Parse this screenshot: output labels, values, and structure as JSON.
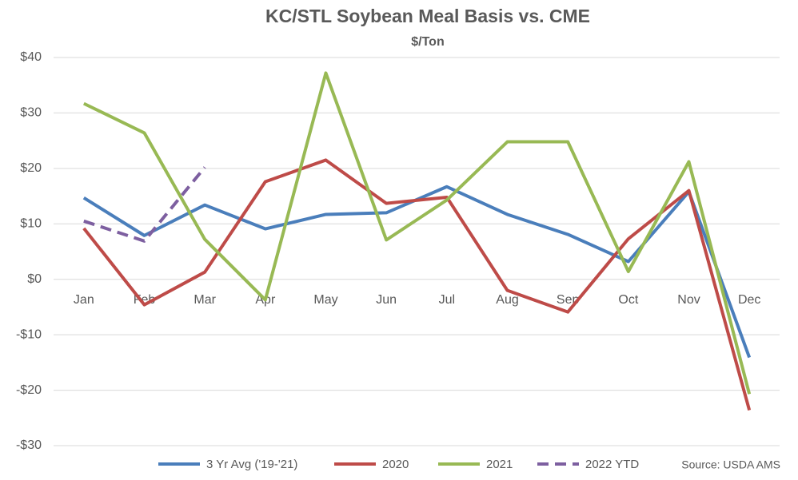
{
  "chart_data": {
    "type": "line",
    "title": "KC/STL Soybean Meal Basis vs. CME",
    "subtitle": "$/Ton",
    "annotation": "Source: USDA AMS",
    "categories": [
      "Jan",
      "Feb",
      "Mar",
      "Apr",
      "May",
      "Jun",
      "Jul",
      "Aug",
      "Sep",
      "Oct",
      "Nov",
      "Dec"
    ],
    "series": [
      {
        "name": "3 Yr Avg ('19-'21)",
        "color": "#4a7ebb",
        "dash": false,
        "values": [
          14.7,
          7.9,
          13.4,
          9.1,
          11.7,
          12.0,
          16.7,
          11.7,
          8.1,
          3.2,
          15.8,
          -14.1
        ]
      },
      {
        "name": "2020",
        "color": "#be4b48",
        "dash": false,
        "values": [
          9.2,
          -4.6,
          1.3,
          17.6,
          21.5,
          13.7,
          14.8,
          -2.0,
          -5.9,
          7.3,
          16.0,
          -23.6
        ]
      },
      {
        "name": "2021",
        "color": "#98b954",
        "dash": false,
        "values": [
          31.7,
          26.4,
          7.2,
          -3.7,
          37.2,
          7.1,
          14.3,
          24.8,
          24.8,
          1.4,
          21.2,
          -20.7
        ]
      },
      {
        "name": "2022 YTD",
        "color": "#7d5fa0",
        "dash": true,
        "values": [
          10.5,
          6.9,
          20.2,
          null,
          null,
          null,
          null,
          null,
          null,
          null,
          null,
          null
        ]
      }
    ],
    "ylim": [
      -30,
      40
    ],
    "yticks": [
      {
        "value": 40,
        "label": "$40"
      },
      {
        "value": 30,
        "label": "$30"
      },
      {
        "value": 20,
        "label": "$20"
      },
      {
        "value": 10,
        "label": "$10"
      },
      {
        "value": 0,
        "label": "$0"
      },
      {
        "value": -10,
        "label": "-$10"
      },
      {
        "value": -20,
        "label": "-$20"
      },
      {
        "value": -30,
        "label": "-$30"
      }
    ],
    "grid": true,
    "legend": "bottom"
  }
}
